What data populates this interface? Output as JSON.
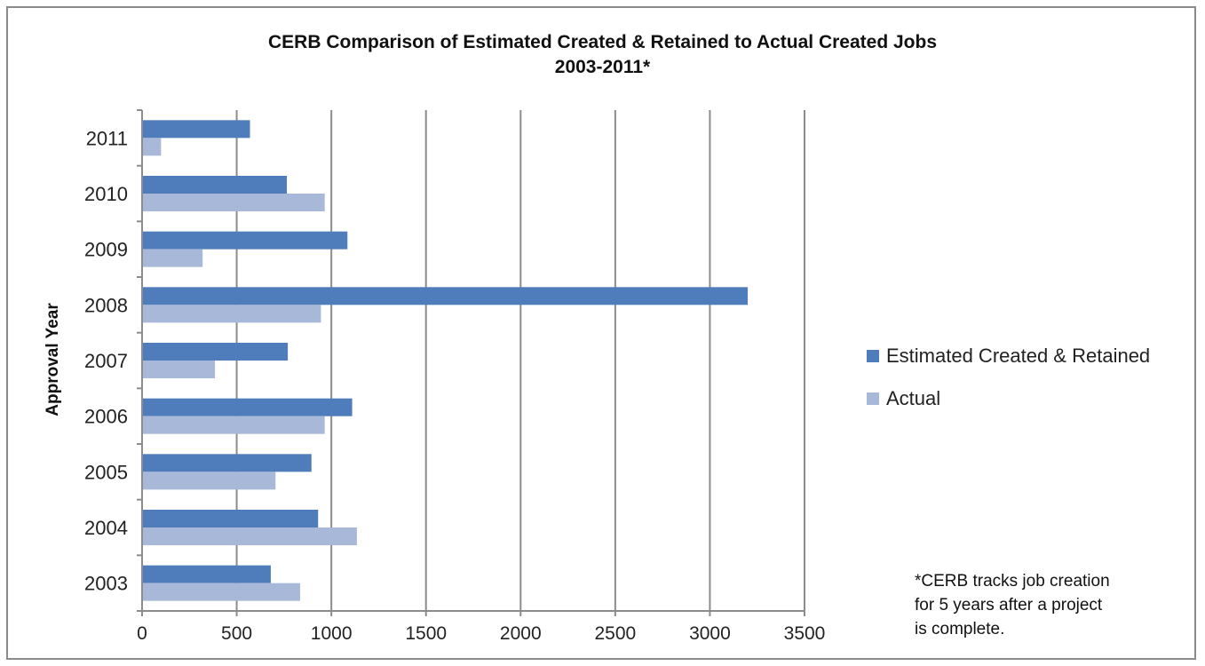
{
  "chart_data": {
    "type": "bar",
    "orientation": "horizontal",
    "title": "CERB Comparison of Estimated Created & Retained to Actual Created Jobs",
    "subtitle": "2003-2011*",
    "ylabel": "Approval Year",
    "xlabel": "",
    "categories": [
      "2003",
      "2004",
      "2005",
      "2006",
      "2007",
      "2008",
      "2009",
      "2010",
      "2011"
    ],
    "series": [
      {
        "name": "Estimated Created & Retained",
        "color": "#4f7dbc",
        "values": [
          680,
          930,
          895,
          1110,
          770,
          3200,
          1085,
          765,
          570
        ]
      },
      {
        "name": "Actual",
        "color": "#a8b8d8",
        "values": [
          835,
          1135,
          705,
          965,
          385,
          945,
          320,
          965,
          100
        ]
      }
    ],
    "xlim": [
      0,
      3500
    ],
    "xticks": [
      0,
      500,
      1000,
      1500,
      2000,
      2500,
      3000,
      3500
    ],
    "grid": "vertical",
    "legend_position": "right"
  },
  "footnote": [
    "*CERB tracks job creation",
    "for 5 years after a project",
    "is complete."
  ]
}
